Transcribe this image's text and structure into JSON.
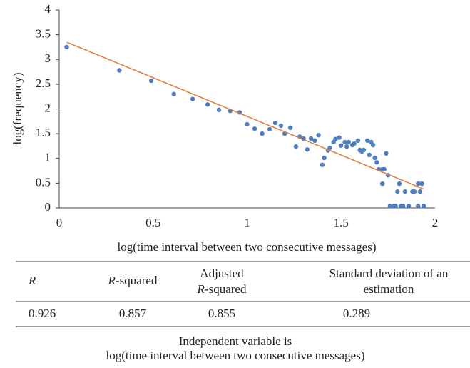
{
  "chart_data": {
    "type": "scatter",
    "xlabel": "log(time interval between two consecutive messages)",
    "ylabel": "log(frequency)",
    "color": "#4f7fbf",
    "x": [
      0.04,
      0.32,
      0.49,
      0.61,
      0.71,
      0.79,
      0.85,
      0.91,
      0.96,
      1.0,
      1.04,
      1.08,
      1.12,
      1.15,
      1.18,
      1.2,
      1.23,
      1.26,
      1.28,
      1.3,
      1.32,
      1.34,
      1.36,
      1.38,
      1.4,
      1.41,
      1.43,
      1.44,
      1.46,
      1.47,
      1.49,
      1.5,
      1.52,
      1.53,
      1.54,
      1.56,
      1.57,
      1.59,
      1.6,
      1.61,
      1.62,
      1.64,
      1.65,
      1.66,
      1.67,
      1.68,
      1.69,
      1.7,
      1.72,
      1.72,
      1.73,
      1.74,
      1.75,
      1.76,
      1.78,
      1.79,
      1.8,
      1.81,
      1.82,
      1.83,
      1.84,
      1.86,
      1.88,
      1.89,
      1.91,
      1.91,
      1.92,
      1.93,
      1.93,
      1.94
    ],
    "values": [
      3.25,
      2.78,
      2.57,
      2.3,
      2.2,
      2.09,
      1.98,
      1.96,
      1.93,
      1.69,
      1.6,
      1.5,
      1.59,
      1.72,
      1.66,
      1.5,
      1.62,
      1.24,
      1.44,
      1.4,
      1.18,
      1.4,
      1.36,
      1.47,
      0.87,
      1.01,
      1.16,
      1.21,
      1.33,
      1.39,
      1.42,
      1.26,
      1.33,
      1.24,
      1.33,
      1.27,
      1.3,
      1.36,
      1.17,
      1.14,
      1.17,
      1.36,
      1.07,
      1.33,
      1.27,
      1.01,
      0.92,
      0.78,
      0.78,
      0.49,
      0.78,
      1.1,
      0.66,
      0.04,
      0.04,
      0.04,
      0.33,
      0.49,
      0.04,
      0.04,
      0.33,
      0.04,
      0.33,
      0.33,
      0.04,
      0.49,
      0.33,
      0.49,
      0.49,
      0.04
    ],
    "trendline": {
      "x": [
        0.04,
        1.94
      ],
      "y": [
        3.35,
        0.38
      ],
      "color": "#e07b39"
    },
    "xlim": [
      0,
      2
    ],
    "xticks": [
      0,
      0.5,
      1,
      1.5,
      2
    ],
    "ylim": [
      0,
      4
    ],
    "yticks": [
      0,
      0.5,
      1,
      1.5,
      2,
      2.5,
      3,
      3.5,
      4
    ],
    "grid": false
  },
  "table": {
    "header": [
      [
        "R"
      ],
      [
        "R",
        "-squared"
      ],
      [
        "Adjusted",
        "R",
        "-squared"
      ],
      [
        "Standard deviation of an",
        "estimation"
      ]
    ],
    "rows": [
      [
        "0.926",
        "0.857",
        "0.855",
        "0.289"
      ]
    ]
  },
  "footnote": [
    "Independent variable is",
    "log(time interval between two consecutive messages)"
  ]
}
